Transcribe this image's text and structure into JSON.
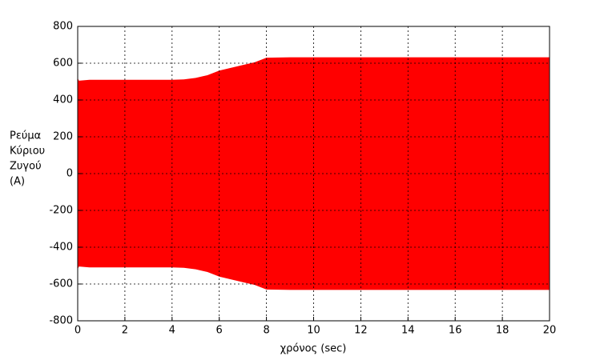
{
  "chart_data": {
    "type": "band",
    "x": [
      0,
      0.05,
      0.5,
      1,
      2,
      3,
      4,
      4.5,
      5,
      5.5,
      6,
      6.5,
      7,
      7.5,
      8,
      9,
      10,
      12,
      14,
      16,
      18,
      20
    ],
    "upper": [
      520,
      505,
      510,
      510,
      510,
      510,
      510,
      512,
      520,
      535,
      560,
      575,
      590,
      605,
      630,
      632,
      632,
      632,
      632,
      632,
      632,
      632
    ],
    "lower": [
      -520,
      -505,
      -510,
      -510,
      -510,
      -510,
      -510,
      -512,
      -520,
      -535,
      -560,
      -575,
      -590,
      -605,
      -630,
      -632,
      -632,
      -632,
      -632,
      -632,
      -632,
      -632
    ],
    "color": "#ff0000",
    "xlim": [
      0,
      20
    ],
    "xticks": [
      0,
      2,
      4,
      6,
      8,
      10,
      12,
      14,
      16,
      18,
      20
    ],
    "ylim": [
      -800,
      800
    ],
    "yticks": [
      -800,
      -600,
      -400,
      -200,
      0,
      200,
      400,
      600,
      800
    ],
    "grid": true,
    "xlabel": "χρόνος (sec)",
    "ylabel": [
      "Ρεύμα",
      "Κύριου",
      "Ζυγού",
      "(A)"
    ]
  }
}
